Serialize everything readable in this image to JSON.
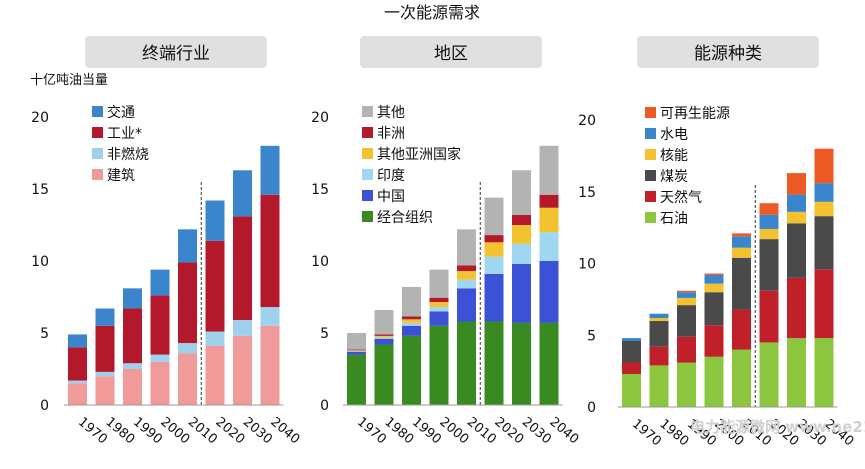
{
  "title": "一次能源需求",
  "y_unit_label": "十亿吨油当量",
  "watermark": "电力能源微网 www.ne21.com",
  "chart_data": [
    {
      "type": "bar",
      "stacked": true,
      "title": "终端行业",
      "categories": [
        "1970",
        "1980",
        "1990",
        "2000",
        "2010",
        "2020",
        "2030",
        "2040"
      ],
      "ylim": [
        0,
        20
      ],
      "yticks": [
        0,
        5,
        10,
        15,
        20
      ],
      "projection_divider_after": "2010",
      "legend_placement": "top-left",
      "series": [
        {
          "name": "建筑",
          "color": "#f19a9a",
          "values": [
            1.5,
            2.0,
            2.5,
            3.0,
            3.6,
            4.1,
            4.8,
            5.5
          ]
        },
        {
          "name": "非燃烧",
          "color": "#9fd1ef",
          "values": [
            0.2,
            0.3,
            0.4,
            0.5,
            0.7,
            1.0,
            1.1,
            1.3
          ]
        },
        {
          "name": "工业*",
          "color": "#b3192a",
          "values": [
            2.3,
            3.2,
            3.8,
            4.1,
            5.6,
            6.3,
            7.2,
            7.8
          ]
        },
        {
          "name": "交通",
          "color": "#3b85cc",
          "values": [
            0.9,
            1.2,
            1.4,
            1.8,
            2.3,
            2.8,
            3.2,
            3.4
          ]
        }
      ],
      "legend_order": [
        "交通",
        "工业*",
        "非燃烧",
        "建筑"
      ]
    },
    {
      "type": "bar",
      "stacked": true,
      "title": "地区",
      "categories": [
        "1970",
        "1980",
        "1990",
        "2000",
        "2010",
        "2020",
        "2030",
        "2040"
      ],
      "ylim": [
        0,
        20
      ],
      "yticks": [
        0,
        5,
        10,
        15,
        20
      ],
      "projection_divider_after": "2010",
      "legend_placement": "top-left",
      "series": [
        {
          "name": "经合组织",
          "color": "#3a8a22",
          "values": [
            3.5,
            4.2,
            4.8,
            5.5,
            5.8,
            5.8,
            5.7,
            5.7
          ]
        },
        {
          "name": "中国",
          "color": "#3b52d6",
          "values": [
            0.2,
            0.4,
            0.7,
            1.0,
            2.3,
            3.3,
            4.1,
            4.3
          ]
        },
        {
          "name": "印度",
          "color": "#9fd6f0",
          "values": [
            0.05,
            0.1,
            0.2,
            0.3,
            0.6,
            1.2,
            1.4,
            2.0
          ]
        },
        {
          "name": "其他亚洲国家",
          "color": "#f2c231",
          "values": [
            0.05,
            0.1,
            0.25,
            0.35,
            0.6,
            1.0,
            1.3,
            1.7
          ]
        },
        {
          "name": "非洲",
          "color": "#b3192a",
          "values": [
            0.05,
            0.1,
            0.2,
            0.3,
            0.4,
            0.5,
            0.7,
            0.9
          ]
        },
        {
          "name": "其他",
          "color": "#b3b3b3",
          "values": [
            1.15,
            1.7,
            2.05,
            1.95,
            2.5,
            2.6,
            3.1,
            3.4
          ]
        }
      ],
      "legend_order": [
        "其他",
        "非洲",
        "其他亚洲国家",
        "印度",
        "中国",
        "经合组织"
      ]
    },
    {
      "type": "bar",
      "stacked": true,
      "title": "能源种类",
      "categories": [
        "1970",
        "1980",
        "1990",
        "2000",
        "2010",
        "2020",
        "2030",
        "2040"
      ],
      "ylim": [
        0,
        20
      ],
      "yticks": [
        0,
        5,
        10,
        15,
        20
      ],
      "projection_divider_after": "2010",
      "legend_placement": "top-left",
      "series": [
        {
          "name": "石油",
          "color": "#8cc63f",
          "values": [
            2.3,
            2.9,
            3.1,
            3.5,
            4.0,
            4.5,
            4.8,
            4.8
          ]
        },
        {
          "name": "天然气",
          "color": "#c0202a",
          "values": [
            0.8,
            1.3,
            1.8,
            2.2,
            2.8,
            3.6,
            4.2,
            4.8
          ]
        },
        {
          "name": "煤炭",
          "color": "#4a4a4a",
          "values": [
            1.5,
            1.8,
            2.2,
            2.3,
            3.6,
            3.6,
            3.8,
            3.7
          ]
        },
        {
          "name": "核能",
          "color": "#f2c231",
          "values": [
            0.0,
            0.2,
            0.5,
            0.6,
            0.7,
            0.7,
            0.8,
            1.0
          ]
        },
        {
          "name": "水电",
          "color": "#3b85cc",
          "values": [
            0.2,
            0.3,
            0.4,
            0.6,
            0.8,
            1.0,
            1.2,
            1.3
          ]
        },
        {
          "name": "可再生能源",
          "color": "#ee5a24",
          "values": [
            0.0,
            0.0,
            0.1,
            0.1,
            0.2,
            0.8,
            1.5,
            2.4
          ]
        }
      ],
      "legend_order": [
        "可再生能源",
        "水电",
        "核能",
        "煤炭",
        "天然气",
        "石油"
      ]
    }
  ]
}
